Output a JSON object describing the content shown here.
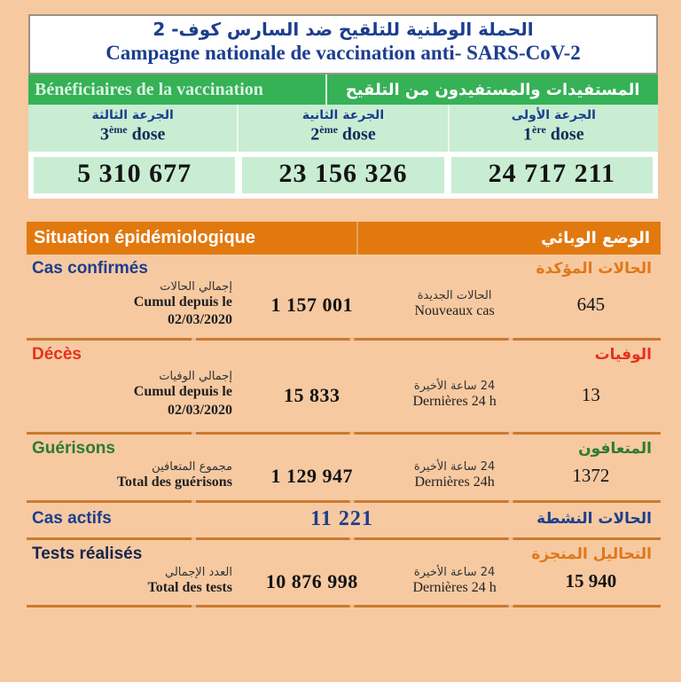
{
  "colors": {
    "page_bg": "#f6c9a1",
    "green_banner": "#35b156",
    "mint_panel": "#c9edd2",
    "orange_banner": "#e2790f",
    "divider_orange": "#cc7a2e",
    "navy_text": "#1c3e8e",
    "red_text": "#e5321d",
    "green_text": "#2d7b33",
    "orange_text": "#e07818"
  },
  "header": {
    "title_ar": "الحملة الوطنية للتلقيح ضد السارس كوف- 2",
    "title_fr": "Campagne nationale de vaccination anti- SARS-CoV-2"
  },
  "vaccination": {
    "banner_fr": "Bénéficiaires de la vaccination",
    "banner_ar": "المستفيدات والمستفيدون من التلقيح",
    "doses": [
      {
        "label_ar": "الجرعة الثالثة",
        "num": "3",
        "sup": "ème",
        "word": " dose",
        "value": "5 310 677"
      },
      {
        "label_ar": "الجرعة الثانية",
        "num": "2",
        "sup": "ème",
        "word": " dose",
        "value": "23 156 326"
      },
      {
        "label_ar": "الجرعة الأولى",
        "num": "1",
        "sup": "ère",
        "word": " dose",
        "value": "24 717 211"
      }
    ]
  },
  "epidemiology": {
    "banner_fr": "Situation épidémiologique",
    "banner_ar": "الوضع الوبائي",
    "cas_confirmes": {
      "title_fr": "Cas confirmés",
      "title_ar": "الحالات المؤكدة",
      "total_ar": "إجمالي الحالات",
      "total_fr_line1": "Cumul depuis le",
      "total_fr_line2": "02/03/2020",
      "total_value": "1 157 001",
      "recent_ar": "الحالات الجديدة",
      "recent_fr": "Nouveaux cas",
      "recent_value": "645"
    },
    "deces": {
      "title_fr": "Décès",
      "title_ar": "الوفيات",
      "total_ar": "إجمالي الوفيات",
      "total_fr_line1": "Cumul depuis le",
      "total_fr_line2": "02/03/2020",
      "total_value": "15 833",
      "recent_ar": "24 ساعة الأخيرة",
      "recent_fr": "Dernières 24 h",
      "recent_value": "13"
    },
    "guerisons": {
      "title_fr": "Guérisons",
      "title_ar": "المتعافون",
      "total_ar": "مجموع المتعافين",
      "total_fr_line1": "Total des guérisons",
      "total_value": "1 129 947",
      "recent_ar": "24 ساعة الأخيرة",
      "recent_fr": "Dernières 24h",
      "recent_value": "1372"
    },
    "cas_actifs": {
      "title_fr": "Cas actifs",
      "title_ar": "الحالات النشطة",
      "value": "11 221"
    },
    "tests": {
      "title_fr": "Tests réalisés",
      "title_ar": "التحاليل المنجزة",
      "total_ar": "العدد الإجمالي",
      "total_fr_line1": "Total des tests",
      "total_value": "10 876 998",
      "recent_ar": "24 ساعة الأخيرة",
      "recent_fr": "Dernières 24 h",
      "recent_value": "15 940"
    }
  }
}
